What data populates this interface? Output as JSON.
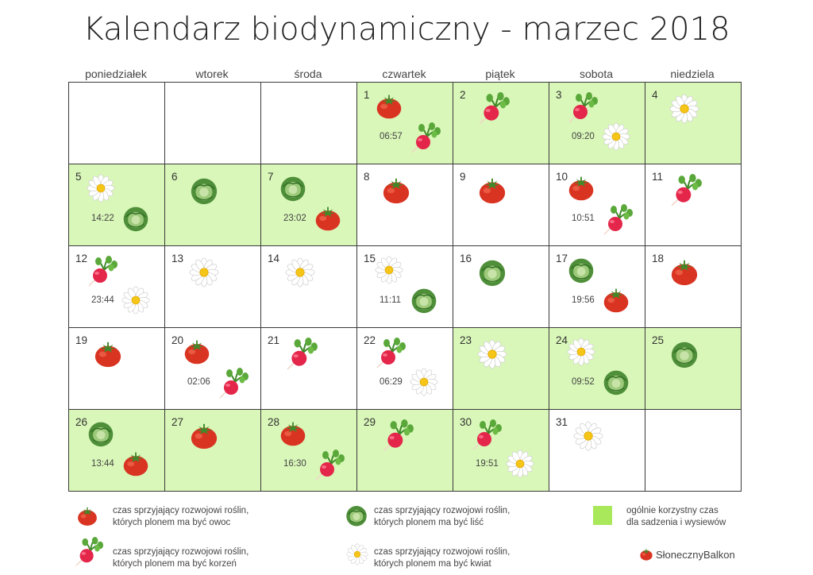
{
  "title": "Kalendarz biodynamiczny - marzec 2018",
  "weekdays": [
    "poniedziałek",
    "wtorek",
    "środa",
    "czwartek",
    "piątek",
    "sobota",
    "niedziela"
  ],
  "weeks": [
    [
      {
        "day": "",
        "fav": false,
        "icons": []
      },
      {
        "day": "",
        "fav": false,
        "icons": []
      },
      {
        "day": "",
        "fav": false,
        "icons": []
      },
      {
        "day": "1",
        "fav": true,
        "icons": [
          "fruit",
          "root"
        ],
        "time": "06:57"
      },
      {
        "day": "2",
        "fav": true,
        "icons": [
          "root"
        ]
      },
      {
        "day": "3",
        "fav": true,
        "icons": [
          "root",
          "flower"
        ],
        "time": "09:20"
      },
      {
        "day": "4",
        "fav": true,
        "icons": [
          "flower"
        ]
      }
    ],
    [
      {
        "day": "5",
        "fav": true,
        "icons": [
          "flower",
          "leaf"
        ],
        "time": "14:22"
      },
      {
        "day": "6",
        "fav": true,
        "icons": [
          "leaf"
        ]
      },
      {
        "day": "7",
        "fav": true,
        "icons": [
          "leaf",
          "fruit"
        ],
        "time": "23:02"
      },
      {
        "day": "8",
        "fav": false,
        "icons": [
          "fruit"
        ]
      },
      {
        "day": "9",
        "fav": false,
        "icons": [
          "fruit"
        ]
      },
      {
        "day": "10",
        "fav": false,
        "icons": [
          "fruit",
          "root"
        ],
        "time": "10:51"
      },
      {
        "day": "11",
        "fav": false,
        "icons": [
          "root"
        ]
      }
    ],
    [
      {
        "day": "12",
        "fav": false,
        "icons": [
          "root",
          "flower"
        ],
        "time": "23:44"
      },
      {
        "day": "13",
        "fav": false,
        "icons": [
          "flower"
        ]
      },
      {
        "day": "14",
        "fav": false,
        "icons": [
          "flower"
        ]
      },
      {
        "day": "15",
        "fav": false,
        "icons": [
          "flower",
          "leaf"
        ],
        "time": "11:11"
      },
      {
        "day": "16",
        "fav": false,
        "icons": [
          "leaf"
        ]
      },
      {
        "day": "17",
        "fav": false,
        "icons": [
          "leaf",
          "fruit"
        ],
        "time": "19:56"
      },
      {
        "day": "18",
        "fav": false,
        "icons": [
          "fruit"
        ]
      }
    ],
    [
      {
        "day": "19",
        "fav": false,
        "icons": [
          "fruit"
        ]
      },
      {
        "day": "20",
        "fav": false,
        "icons": [
          "fruit",
          "root"
        ],
        "time": "02:06"
      },
      {
        "day": "21",
        "fav": false,
        "icons": [
          "root"
        ]
      },
      {
        "day": "22",
        "fav": false,
        "icons": [
          "root",
          "flower"
        ],
        "time": "06:29"
      },
      {
        "day": "23",
        "fav": true,
        "icons": [
          "flower"
        ]
      },
      {
        "day": "24",
        "fav": true,
        "icons": [
          "flower",
          "leaf"
        ],
        "time": "09:52"
      },
      {
        "day": "25",
        "fav": true,
        "icons": [
          "leaf"
        ]
      }
    ],
    [
      {
        "day": "26",
        "fav": true,
        "icons": [
          "leaf",
          "fruit"
        ],
        "time": "13:44"
      },
      {
        "day": "27",
        "fav": true,
        "icons": [
          "fruit"
        ]
      },
      {
        "day": "28",
        "fav": true,
        "icons": [
          "fruit",
          "root"
        ],
        "time": "16:30"
      },
      {
        "day": "29",
        "fav": true,
        "icons": [
          "root"
        ]
      },
      {
        "day": "30",
        "fav": true,
        "icons": [
          "root",
          "flower"
        ],
        "time": "19:51"
      },
      {
        "day": "31",
        "fav": false,
        "icons": [
          "flower"
        ]
      },
      {
        "day": "",
        "fav": false,
        "icons": []
      }
    ]
  ],
  "legend": {
    "fruit": "czas sprzyjający rozwojowi roślin, których plonem ma być owoc",
    "leaf": "czas sprzyjający rozwojowi roślin, których plonem ma być liść",
    "favorable": "ogólnie korzystny czas dla sadzenia i wysiewów",
    "root": "czas sprzyjający rozwojowi roślin, których plonem ma być korzeń",
    "flower": "czas sprzyjający rozwojowi roślin, których plonem ma być kwiat",
    "fruit_l1": "czas sprzyjający rozwojowi roślin,",
    "fruit_l2": "których plonem ma być owoc",
    "leaf_l1": "czas sprzyjający rozwojowi roślin,",
    "leaf_l2": "których plonem ma być liść",
    "fav_l1": "ogólnie korzystny czas",
    "fav_l2": "dla sadzenia i wysiewów",
    "root_l1": "czas sprzyjający rozwojowi roślin,",
    "root_l2": "których plonem ma być korzeń",
    "flower_l1": "czas sprzyjający rozwojowi roślin,",
    "flower_l2": "których plonem ma być kwiat"
  },
  "colors": {
    "favorable_cell": "#d9f7b9",
    "favorable_swatch": "#a8e85a",
    "border": "#3a3a3a"
  },
  "brand": "SłonecznyBalkon"
}
